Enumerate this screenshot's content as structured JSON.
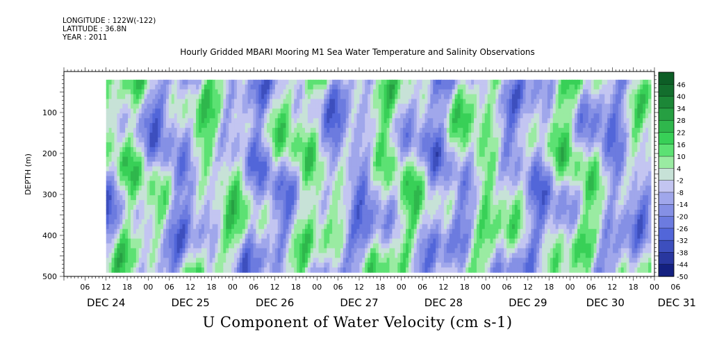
{
  "header": {
    "longitude": "LONGITUDE : 122W(-122)",
    "latitude": "LATITUDE : 36.8N",
    "year": "YEAR : 2011"
  },
  "title": "Hourly Gridded MBARI Mooring M1 Sea Water Temperature and Salinity Observations",
  "bottom_title": "U Component of Water Velocity (cm s-1)",
  "chart_data": {
    "type": "heatmap",
    "title": "Hourly Gridded MBARI Mooring M1 Sea Water Temperature and Salinity Observations",
    "ylabel": "DEPTH (m)",
    "xlabel": "",
    "colorbar_label": "U Component of Water Velocity (cm s-1)",
    "x_range_hours": [
      0,
      168
    ],
    "x_start": "2011-12-24T00:00",
    "x_tick_hour_labels": [
      "06",
      "12",
      "18",
      "00",
      "06",
      "12",
      "18",
      "00",
      "06",
      "12",
      "18",
      "00",
      "06",
      "12",
      "18",
      "00",
      "06",
      "12",
      "18",
      "00",
      "06",
      "12",
      "18",
      "00",
      "06",
      "12",
      "18",
      "00",
      "06"
    ],
    "x_date_labels": [
      "DEC 24",
      "DEC 25",
      "DEC 26",
      "DEC 27",
      "DEC 28",
      "DEC 29",
      "DEC 30",
      "DEC 31"
    ],
    "y_ticks": [
      100,
      200,
      300,
      400,
      500
    ],
    "y_range": [
      500,
      0
    ],
    "data_depth_range": [
      20,
      490
    ],
    "colorbar_levels": [
      48,
      46,
      40,
      34,
      28,
      22,
      16,
      10,
      4,
      -2,
      -8,
      -14,
      -20,
      -26,
      -32,
      -38,
      -44,
      -50
    ],
    "colorbar_labels": [
      "46",
      "40",
      "34",
      "28",
      "22",
      "16",
      "10",
      "4",
      "-2",
      "-8",
      "-14",
      "-20",
      "-26",
      "-32",
      "-38",
      "-44",
      "-50"
    ],
    "colors": {
      "strong_positive": "#0b5a24",
      "positive": "#3ddc5c",
      "weak_positive": "#b9f0b9",
      "near_zero": "#d4d4f4",
      "weak_negative": "#9aa2ea",
      "negative": "#4e62d8",
      "strong_negative": "#0a1470"
    }
  }
}
